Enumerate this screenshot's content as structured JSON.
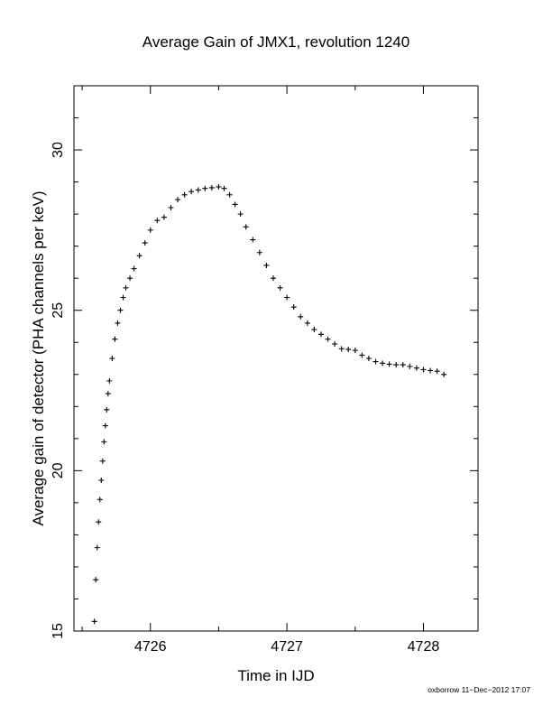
{
  "chart_data": {
    "type": "scatter",
    "title": "Average Gain of JMX1, revolution 1240",
    "xlabel": "Time in IJD",
    "ylabel": "Average gain of detector (PHA channels per keV)",
    "xlim": [
      4725.44,
      4728.4
    ],
    "ylim": [
      15,
      32
    ],
    "xticks": [
      4726,
      4727,
      4728
    ],
    "yticks": [
      15,
      20,
      25,
      30
    ],
    "marker": "plus",
    "grid": false,
    "series": [
      {
        "x": [
          4725.59,
          4725.6,
          4725.61,
          4725.62,
          4725.63,
          4725.64,
          4725.65,
          4725.66,
          4725.67,
          4725.68,
          4725.69,
          4725.7,
          4725.72,
          4725.74,
          4725.76,
          4725.78,
          4725.8,
          4725.82,
          4725.85,
          4725.88,
          4725.92,
          4725.96,
          4726.0,
          4726.05,
          4726.1,
          4726.15,
          4726.2,
          4726.25,
          4726.3,
          4726.35,
          4726.4,
          4726.45,
          4726.5,
          4726.54,
          4726.58,
          4726.62,
          4726.66,
          4726.7,
          4726.75,
          4726.8,
          4726.85,
          4726.9,
          4726.95,
          4727.0,
          4727.05,
          4727.1,
          4727.15,
          4727.2,
          4727.25,
          4727.3,
          4727.35,
          4727.4,
          4727.45,
          4727.5,
          4727.55,
          4727.6,
          4727.65,
          4727.7,
          4727.75,
          4727.8,
          4727.85,
          4727.9,
          4727.95,
          4728.0,
          4728.05,
          4728.1,
          4728.15
        ],
        "y": [
          15.3,
          16.6,
          17.6,
          18.4,
          19.1,
          19.7,
          20.3,
          20.9,
          21.4,
          21.9,
          22.4,
          22.8,
          23.5,
          24.1,
          24.6,
          25.0,
          25.4,
          25.7,
          26.0,
          26.3,
          26.7,
          27.1,
          27.5,
          27.8,
          27.9,
          28.2,
          28.45,
          28.6,
          28.7,
          28.75,
          28.8,
          28.82,
          28.85,
          28.8,
          28.6,
          28.3,
          28.0,
          27.6,
          27.2,
          26.8,
          26.4,
          26.0,
          25.7,
          25.4,
          25.1,
          24.8,
          24.6,
          24.4,
          24.25,
          24.1,
          23.95,
          23.8,
          23.78,
          23.75,
          23.6,
          23.5,
          23.4,
          23.35,
          23.32,
          23.3,
          23.3,
          23.25,
          23.2,
          23.15,
          23.12,
          23.1,
          23.0
        ]
      }
    ]
  },
  "footer": {
    "credit": "oxborrow 11−Dec−2012 17:07"
  }
}
